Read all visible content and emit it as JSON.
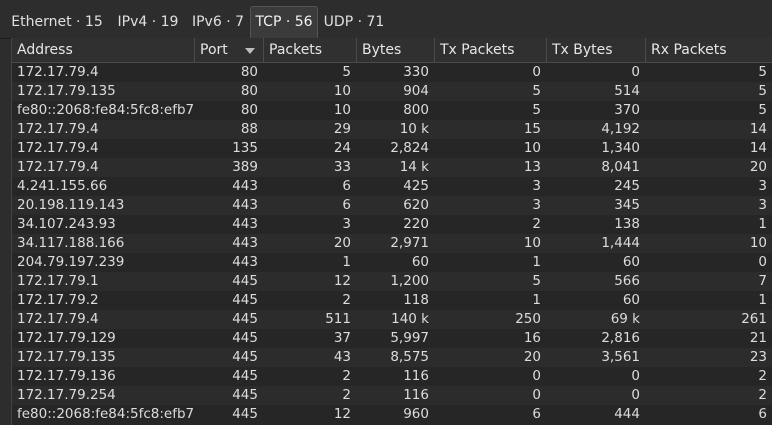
{
  "tabs": [
    {
      "label": "Ethernet · 15",
      "active": false
    },
    {
      "label": "IPv4 · 19",
      "active": false
    },
    {
      "label": "IPv6 · 7",
      "active": false
    },
    {
      "label": "TCP · 56",
      "active": true
    },
    {
      "label": "UDP · 71",
      "active": false
    }
  ],
  "columns": [
    "Address",
    "Port",
    "Packets",
    "Bytes",
    "Tx Packets",
    "Tx Bytes",
    "Rx Packets"
  ],
  "sort": {
    "column": "Port",
    "direction": "descending-indicator"
  },
  "rows": [
    [
      "172.17.79.4",
      "80",
      "5",
      "330",
      "0",
      "0",
      "5"
    ],
    [
      "172.17.79.135",
      "80",
      "10",
      "904",
      "5",
      "514",
      "5"
    ],
    [
      "fe80::2068:fe84:5fc8:efb7",
      "80",
      "10",
      "800",
      "5",
      "370",
      "5"
    ],
    [
      "172.17.79.4",
      "88",
      "29",
      "10 k",
      "15",
      "4,192",
      "14"
    ],
    [
      "172.17.79.4",
      "135",
      "24",
      "2,824",
      "10",
      "1,340",
      "14"
    ],
    [
      "172.17.79.4",
      "389",
      "33",
      "14 k",
      "13",
      "8,041",
      "20"
    ],
    [
      "4.241.155.66",
      "443",
      "6",
      "425",
      "3",
      "245",
      "3"
    ],
    [
      "20.198.119.143",
      "443",
      "6",
      "620",
      "3",
      "345",
      "3"
    ],
    [
      "34.107.243.93",
      "443",
      "3",
      "220",
      "2",
      "138",
      "1"
    ],
    [
      "34.117.188.166",
      "443",
      "20",
      "2,971",
      "10",
      "1,444",
      "10"
    ],
    [
      "204.79.197.239",
      "443",
      "1",
      "60",
      "1",
      "60",
      "0"
    ],
    [
      "172.17.79.1",
      "445",
      "12",
      "1,200",
      "5",
      "566",
      "7"
    ],
    [
      "172.17.79.2",
      "445",
      "2",
      "118",
      "1",
      "60",
      "1"
    ],
    [
      "172.17.79.4",
      "445",
      "511",
      "140 k",
      "250",
      "69 k",
      "261"
    ],
    [
      "172.17.79.129",
      "445",
      "37",
      "5,997",
      "16",
      "2,816",
      "21"
    ],
    [
      "172.17.79.135",
      "445",
      "43",
      "8,575",
      "20",
      "3,561",
      "23"
    ],
    [
      "172.17.79.136",
      "445",
      "2",
      "116",
      "0",
      "0",
      "2"
    ],
    [
      "172.17.79.254",
      "445",
      "2",
      "116",
      "0",
      "0",
      "2"
    ],
    [
      "fe80::2068:fe84:5fc8:efb7",
      "445",
      "12",
      "960",
      "6",
      "444",
      "6"
    ]
  ]
}
